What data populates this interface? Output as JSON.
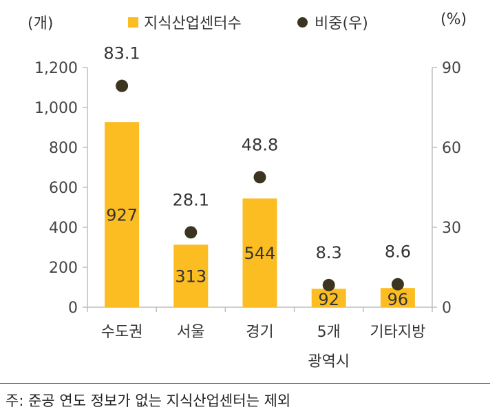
{
  "chart_data": {
    "type": "bar",
    "left_axis_unit": "(개)",
    "right_axis_unit": "(%)",
    "categories": [
      [
        "수도권"
      ],
      [
        "서울"
      ],
      [
        "경기"
      ],
      [
        "5개",
        "광역시"
      ],
      [
        "기타지방"
      ]
    ],
    "series": [
      {
        "name": "지식산업센터수",
        "kind": "bar",
        "axis": "left",
        "values": [
          927,
          313,
          544,
          92,
          96
        ],
        "labels": [
          "927",
          "313",
          "544",
          "92",
          "96"
        ]
      },
      {
        "name": "비중(우)",
        "kind": "scatter",
        "axis": "right",
        "values": [
          83.1,
          28.1,
          48.8,
          8.3,
          8.6
        ],
        "labels": [
          "83.1",
          "28.1",
          "48.8",
          "8.3",
          "8.6"
        ]
      }
    ],
    "y_left": {
      "range": [
        0,
        1200
      ],
      "ticks": [
        0,
        200,
        400,
        600,
        800,
        1000,
        1200
      ],
      "tick_labels": [
        "0",
        "200",
        "400",
        "600",
        "800",
        "1,000",
        "1,200"
      ]
    },
    "y_right": {
      "range": [
        0,
        90
      ],
      "ticks": [
        0,
        30,
        60,
        90
      ],
      "tick_labels": [
        "0",
        "30",
        "60",
        "90"
      ]
    },
    "legend_position": "top",
    "grid": false
  },
  "footnote": "주: 준공 연도 정보가 없는 지식산업센터는 제외",
  "colors": {
    "bar": "#fbbd22",
    "dot": "#3b3520",
    "axis": "#bfbfbf",
    "text": "#3a3a3a"
  }
}
